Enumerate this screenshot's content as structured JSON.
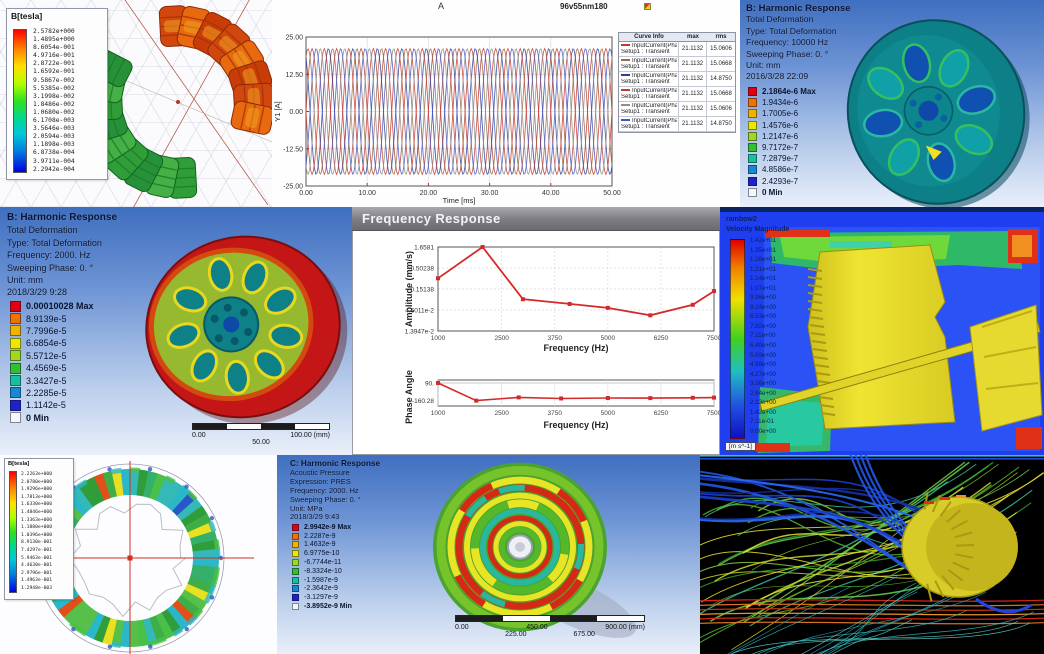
{
  "panels": {
    "torus": {
      "legend_title": "B[tesla]",
      "legend_values": [
        "2.5782e+000",
        "1.4895e+000",
        "8.6054e-001",
        "4.9716e-001",
        "2.8722e-001",
        "1.6592e-001",
        "9.5867e-002",
        "5.5385e-002",
        "3.1998e-002",
        "1.8486e-002",
        "1.0680e-002",
        "6.1708e-003",
        "3.5646e-003",
        "2.0594e-003",
        "1.1898e-003",
        "6.8738e-004",
        "3.9711e-004",
        "2.2942e-004"
      ]
    },
    "currents": {
      "window_title": "A",
      "title": "96v55nm180",
      "y_label": "Y1 [A]",
      "x_label": "Time [ms]",
      "y_ticks": [
        "25.00",
        "12.50",
        "0.00",
        "-12.50",
        "-25.00"
      ],
      "x_ticks": [
        "0.00",
        "10.00",
        "20.00",
        "30.00",
        "40.00",
        "50.00"
      ],
      "curve_info_title": "Curve Info",
      "col_max": "max",
      "col_rms": "rms",
      "rows": [
        {
          "name": "InputCurrent(PhaseA)",
          "setup": "Setup1 : Transient",
          "max": "21.1132",
          "rms": "15.0606",
          "color": "#c23b2e"
        },
        {
          "name": "InputCurrent(PhaseB)",
          "setup": "Setup1 : Transient",
          "max": "21.1132",
          "rms": "15.0668",
          "color": "#9a6a4a"
        },
        {
          "name": "InputCurrent(PhaseC)",
          "setup": "Setup1 : Transient",
          "max": "21.1132",
          "rms": "14.8750",
          "color": "#2c3e98"
        },
        {
          "name": "InputCurrent(PhaseE)",
          "setup": "Setup1 : Transient",
          "max": "21.1132",
          "rms": "15.0668",
          "color": "#c23b2e"
        },
        {
          "name": "InputCurrent(PhaseD)",
          "setup": "Setup1 : Transient",
          "max": "21.1132",
          "rms": "15.0606",
          "color": "#8f8f8f"
        },
        {
          "name": "InputCurrent(PhaseF)",
          "setup": "Setup1 : Transient",
          "max": "21.1132",
          "rms": "14.8750",
          "color": "#4656c0"
        }
      ]
    },
    "harmonic_b1": {
      "title": "B: Harmonic Response",
      "lines": [
        "Total Deformation",
        "Type: Total Deformation",
        "Frequency: 10000 Hz",
        "Sweeping Phase: 0. °",
        "Unit: mm",
        "2016/3/28 22:09"
      ],
      "legend": [
        "2.1864e-6 Max",
        "1.9434e-6",
        "1.7005e-6",
        "1.4576e-6",
        "1.2147e-6",
        "9.7172e-7",
        "7.2879e-7",
        "4.8586e-7",
        "2.4293e-7",
        "0 Min"
      ]
    },
    "harmonic_b2": {
      "title": "B: Harmonic Response",
      "lines": [
        "Total Deformation",
        "Type: Total Deformation",
        "Frequency: 2000. Hz",
        "Sweeping Phase: 0. °",
        "Unit: mm",
        "2018/3/29 9:28"
      ],
      "legend": [
        "0.00010028 Max",
        "8.9139e-5",
        "7.7996e-5",
        "6.6854e-5",
        "5.5712e-5",
        "4.4569e-5",
        "3.3427e-5",
        "2.2285e-5",
        "1.1142e-5",
        "0 Min"
      ],
      "ruler_top": [
        "0.00",
        "100.00 (mm)"
      ],
      "ruler_bottom": [
        "50.00"
      ]
    },
    "freq_window": {
      "title": "Frequency Response",
      "amp_label": "Amplitude (mm/s)",
      "phase_label": "Phase Angle",
      "x_label": "Frequency (Hz)",
      "amp_ticks": [
        "1.6581",
        "0.50238",
        "0.15138",
        "4.6011e-2",
        "1.3947e-2"
      ],
      "phase_ticks": [
        "90.",
        "-160.28"
      ],
      "x_ticks": [
        "1000",
        "2500",
        "3750",
        "5000",
        "6250",
        "7500"
      ]
    },
    "cfd": {
      "legend_line1": "rainbow2",
      "legend_line2": "Velocity Magnitude",
      "unit": "[m s^-1]",
      "values": [
        "1.42e+01",
        "1.35e+01",
        "1.28e+01",
        "1.21e+01",
        "1.14e+01",
        "1.07e+01",
        "9.96e+00",
        "9.24e+00",
        "8.53e+00",
        "7.82e+00",
        "7.11e+00",
        "6.40e+00",
        "5.69e+00",
        "4.98e+00",
        "4.27e+00",
        "3.56e+00",
        "2.84e+00",
        "2.13e+00",
        "1.42e+00",
        "7.11e-01",
        "0.00e+00"
      ]
    },
    "ring": {
      "legend_title": "B[tesla]",
      "legend_values": [
        "2.2263e+000",
        "2.0780e+000",
        "1.9296e+000",
        "1.7813e+000",
        "1.6330e+000",
        "1.4846e+000",
        "1.3363e+000",
        "1.1880e+000",
        "1.0396e+000",
        "8.9130e-001",
        "7.4297e-001",
        "5.9463e-001",
        "4.4630e-001",
        "2.9796e-001",
        "1.4963e-001",
        "1.2948e-003"
      ]
    },
    "harmonic_c": {
      "title": "C: Harmonic Response",
      "lines": [
        "Acoustic Pressure",
        "Expression: PRES",
        "Frequency: 2000. Hz",
        "Sweeping Phase: 0. °",
        "Unit: MPa",
        "2018/3/29 9:43"
      ],
      "legend": [
        "2.9942e-9 Max",
        "2.2287e-9",
        "1.4632e-9",
        "6.9775e-10",
        "-6.7744e-11",
        "-8.3324e-10",
        "-1.5987e-9",
        "-2.3642e-9",
        "-3.1297e-9",
        "-3.8952e-9 Min"
      ],
      "ruler_top": [
        "0.00",
        "450.00",
        "900.00 (mm)"
      ],
      "ruler_bottom": [
        "225.00",
        "675.00"
      ]
    }
  },
  "chart_data": [
    {
      "type": "line",
      "title": "96v55nm180",
      "xlabel": "Time [ms]",
      "ylabel": "Y1 [A]",
      "xlim": [
        0,
        50
      ],
      "ylim": [
        -25,
        25
      ],
      "waveform": "sine",
      "period_ms": 4,
      "series": [
        {
          "name": "InputCurrent(PhaseA)",
          "amplitude": 21.1132,
          "phase_deg": 0,
          "color": "#c23b2e"
        },
        {
          "name": "InputCurrent(PhaseB)",
          "amplitude": 21.1132,
          "phase_deg": 60,
          "color": "#9a6a4a"
        },
        {
          "name": "InputCurrent(PhaseC)",
          "amplitude": 21.1132,
          "phase_deg": 120,
          "color": "#2c3e98"
        },
        {
          "name": "InputCurrent(PhaseE)",
          "amplitude": 21.1132,
          "phase_deg": 180,
          "color": "#c23b2e"
        },
        {
          "name": "InputCurrent(PhaseD)",
          "amplitude": 21.1132,
          "phase_deg": 240,
          "color": "#8f8f8f"
        },
        {
          "name": "InputCurrent(PhaseF)",
          "amplitude": 21.1132,
          "phase_deg": 300,
          "color": "#4656c0"
        }
      ]
    },
    {
      "type": "line",
      "title": "Frequency Response - Amplitude",
      "xlabel": "Frequency (Hz)",
      "ylabel": "Amplitude (mm/s)",
      "yscale": "log",
      "xlim": [
        1000,
        7500
      ],
      "color": "#d42a2a",
      "x": [
        1000,
        2050,
        3000,
        4100,
        5000,
        6000,
        7000,
        7500
      ],
      "y": [
        0.28,
        1.6581,
        0.085,
        0.065,
        0.052,
        0.034,
        0.062,
        0.135
      ]
    },
    {
      "type": "line",
      "title": "Frequency Response - Phase",
      "xlabel": "Frequency (Hz)",
      "ylabel": "Phase Angle",
      "xlim": [
        1000,
        7500
      ],
      "color": "#d42a2a",
      "x": [
        1000,
        1900,
        2900,
        3900,
        5000,
        6000,
        7000,
        7500
      ],
      "y": [
        90,
        -155,
        -110,
        -125,
        -118,
        -120,
        -115,
        -113
      ]
    }
  ]
}
